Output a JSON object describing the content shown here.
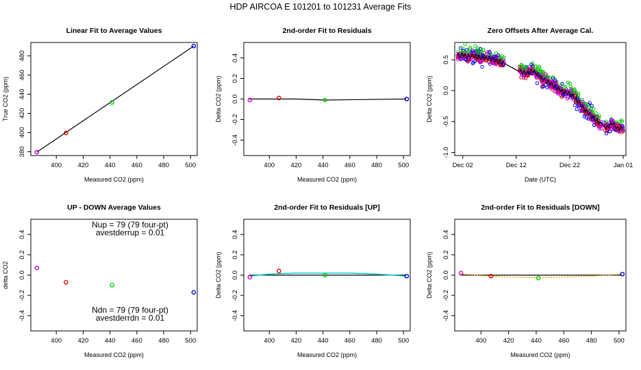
{
  "figure_title": "HDP   AIRCOA E   101201 to 101231   Average Fits",
  "colors": {
    "purple": "#cc00cc",
    "red": "#dd0000",
    "green": "#00cc00",
    "blue": "#0000dd",
    "cyan": "#00cccc",
    "orange": "#ffaa00",
    "black": "#000000"
  },
  "chart_data": [
    {
      "id": "linear-fit",
      "type": "scatter",
      "title": "Linear Fit to Average Values",
      "xlabel": "Measured CO2 (ppm)",
      "ylabel": "True CO2 (ppm)",
      "xlim": [
        381,
        505
      ],
      "ylim": [
        376,
        494
      ],
      "xticks": [
        400,
        420,
        440,
        460,
        480,
        500
      ],
      "yticks": [
        380,
        400,
        420,
        440,
        460,
        480
      ],
      "points": [
        {
          "x": 385.5,
          "y": 379.6,
          "color": "purple"
        },
        {
          "x": 407.2,
          "y": 399.5,
          "color": "red"
        },
        {
          "x": 441.5,
          "y": 431.4,
          "color": "green"
        },
        {
          "x": 502.4,
          "y": 490.3,
          "color": "blue"
        }
      ],
      "lines": [
        {
          "color": "black",
          "x": [
            385.5,
            502.4
          ],
          "y": [
            379.6,
            490.3
          ]
        }
      ]
    },
    {
      "id": "residuals",
      "type": "scatter",
      "title": "2nd-order Fit to Residuals",
      "xlabel": "Measured CO2 (ppm)",
      "ylabel": "Delta CO2 (ppm)",
      "xlim": [
        381,
        505
      ],
      "ylim": [
        -0.55,
        0.55
      ],
      "xticks": [
        400,
        420,
        440,
        460,
        480,
        500
      ],
      "yticks": [
        -0.4,
        -0.2,
        0.0,
        0.2,
        0.4
      ],
      "points": [
        {
          "x": 385.5,
          "y": -0.01,
          "color": "purple"
        },
        {
          "x": 407.2,
          "y": 0.01,
          "color": "red"
        },
        {
          "x": 441.5,
          "y": -0.01,
          "color": "green"
        },
        {
          "x": 502.4,
          "y": 0.0,
          "color": "blue"
        }
      ],
      "lines": [
        {
          "color": "black",
          "x": [
            385,
            420,
            441.5,
            470,
            502
          ],
          "y": [
            0.0,
            0.0,
            -0.01,
            -0.005,
            0.0
          ]
        }
      ]
    },
    {
      "id": "zero-offsets",
      "type": "scatter",
      "title": "Zero Offsets After Average Cal.",
      "xlabel": "Date (UTC)",
      "ylabel": "Delta CO2 (ppm)",
      "xlim": [
        -0.5,
        31.5
      ],
      "ylim": [
        -1.05,
        0.78
      ],
      "xticks": [
        1,
        11,
        21,
        31
      ],
      "xticklabels": [
        "Dec 02",
        "Dec 12",
        "Dec 22",
        "Jan 01"
      ],
      "yticks": [
        -1.0,
        -0.5,
        0.0,
        0.5
      ],
      "trend": {
        "x": [
          0,
          1,
          2,
          3,
          4,
          5,
          6,
          7,
          8,
          9,
          10,
          11,
          12,
          13,
          14,
          15,
          16,
          17,
          18,
          19,
          20,
          21,
          22,
          23,
          24,
          25,
          26,
          27,
          28,
          29,
          30,
          31
        ],
        "y": [
          0.56,
          0.58,
          0.55,
          0.57,
          0.54,
          0.53,
          0.52,
          0.49,
          0.47,
          0.43,
          0.38,
          0.32,
          0.3,
          0.28,
          0.33,
          0.26,
          0.19,
          0.14,
          0.08,
          0.02,
          -0.02,
          -0.05,
          -0.12,
          -0.22,
          -0.33,
          -0.41,
          -0.48,
          -0.56,
          -0.6,
          -0.52,
          -0.62,
          -0.6
        ]
      },
      "gaps": [
        [
          8.8,
          11.6
        ],
        [
          26.9,
          27.4
        ]
      ]
    },
    {
      "id": "up-down",
      "type": "scatter",
      "title": "UP - DOWN Average Values",
      "xlabel": "Measured CO2 (ppm)",
      "ylabel": "delta CO2",
      "xlim": [
        381,
        505
      ],
      "ylim": [
        -0.55,
        0.55
      ],
      "xticks": [
        400,
        420,
        440,
        460,
        480,
        500
      ],
      "yticks": [
        -0.4,
        -0.2,
        0.0,
        0.2,
        0.4
      ],
      "points": [
        {
          "x": 385.5,
          "y": 0.07,
          "color": "purple"
        },
        {
          "x": 407.2,
          "y": -0.07,
          "color": "red"
        },
        {
          "x": 441.5,
          "y": -0.1,
          "color": "green"
        },
        {
          "x": 502.4,
          "y": -0.17,
          "color": "blue"
        }
      ],
      "annotations": [
        {
          "text": "Nup = 79 (79 four-pt)",
          "x": 455,
          "y": 0.47
        },
        {
          "text": "avestderrup =  0.01",
          "x": 455,
          "y": 0.39
        },
        {
          "text": "Ndn = 79 (79 four-pt)",
          "x": 455,
          "y": -0.37
        },
        {
          "text": "avestderrdn =  0.01",
          "x": 455,
          "y": -0.45
        }
      ]
    },
    {
      "id": "residuals-up",
      "type": "scatter",
      "title": "2nd-order Fit to Residuals [UP]",
      "xlabel": "Measured CO2 (ppm)",
      "ylabel": "Delta CO2 (ppm)",
      "xlim": [
        381,
        505
      ],
      "ylim": [
        -0.55,
        0.55
      ],
      "xticks": [
        400,
        420,
        440,
        460,
        480,
        500
      ],
      "yticks": [
        -0.4,
        -0.2,
        0.0,
        0.2,
        0.4
      ],
      "points": [
        {
          "x": 385.5,
          "y": -0.02,
          "color": "purple"
        },
        {
          "x": 407.2,
          "y": 0.04,
          "color": "red"
        },
        {
          "x": 441.5,
          "y": 0.0,
          "color": "green"
        },
        {
          "x": 502.4,
          "y": -0.01,
          "color": "blue"
        }
      ],
      "lines": [
        {
          "color": "black",
          "x": [
            385,
            502
          ],
          "y": [
            0.0,
            0.0
          ]
        },
        {
          "color": "cyan",
          "x": [
            385,
            400,
            420,
            440,
            460,
            480,
            502
          ],
          "y": [
            -0.01,
            0.01,
            0.02,
            0.02,
            0.02,
            0.01,
            -0.01
          ]
        }
      ]
    },
    {
      "id": "residuals-down",
      "type": "scatter",
      "title": "2nd-order Fit to Residuals [DOWN]",
      "xlabel": "Measured CO2 (ppm)",
      "ylabel": "Delta CO2 (ppm)",
      "xlim": [
        381,
        505
      ],
      "ylim": [
        -0.55,
        0.55
      ],
      "xticks": [
        400,
        420,
        440,
        460,
        480,
        500
      ],
      "yticks": [
        -0.4,
        -0.2,
        0.0,
        0.2,
        0.4
      ],
      "points": [
        {
          "x": 385.5,
          "y": 0.02,
          "color": "purple"
        },
        {
          "x": 407.2,
          "y": -0.01,
          "color": "red"
        },
        {
          "x": 441.5,
          "y": -0.03,
          "color": "green"
        },
        {
          "x": 502.4,
          "y": 0.01,
          "color": "blue"
        }
      ],
      "lines": [
        {
          "color": "black",
          "x": [
            385,
            502
          ],
          "y": [
            0.0,
            0.0
          ]
        },
        {
          "color": "orange",
          "x": [
            385,
            400,
            420,
            440,
            460,
            480,
            502
          ],
          "y": [
            0.015,
            -0.005,
            -0.02,
            -0.025,
            -0.02,
            -0.01,
            0.01
          ]
        }
      ]
    }
  ]
}
